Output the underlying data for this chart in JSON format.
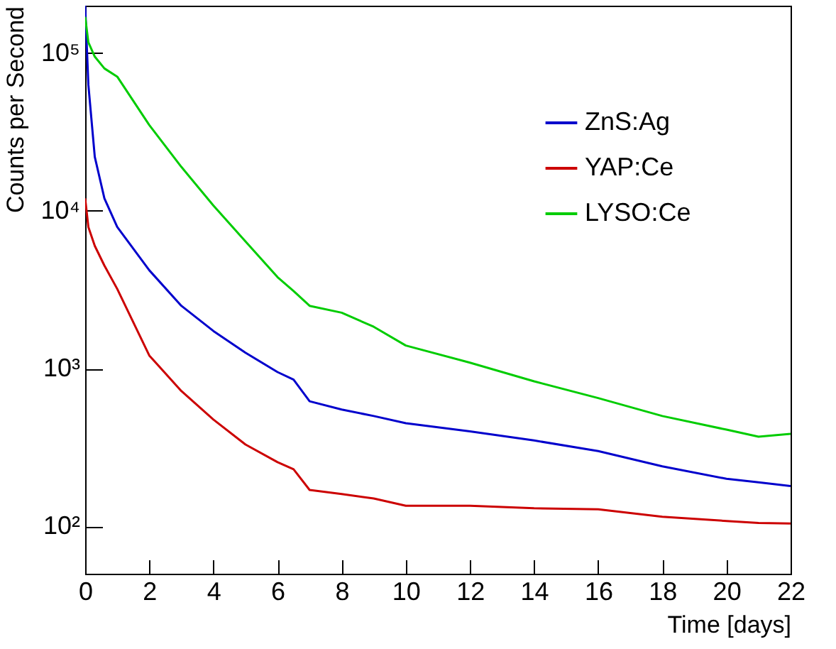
{
  "chart_data": {
    "type": "line",
    "xlabel": "Time [days]",
    "ylabel": "Counts per Second",
    "log": "y",
    "grid": false,
    "legend": "top right",
    "marker": "none",
    "line_style": "solid",
    "x": [
      0,
      0.1,
      0.3,
      0.6,
      1,
      2,
      3,
      4,
      5,
      6,
      6.5,
      7,
      8,
      9,
      10,
      12,
      14,
      16,
      18,
      20,
      21,
      22
    ],
    "series": [
      {
        "name": "ZnS:Ag",
        "color": "#0000cc",
        "values": [
          200000,
          63000,
          22000,
          12000,
          7900,
          4200,
          2500,
          1730,
          1260,
          950,
          850,
          620,
          550,
          500,
          450,
          400,
          350,
          300,
          240,
          200,
          190,
          180
        ]
      },
      {
        "name": "YAP:Ce",
        "color": "#cc0000",
        "values": [
          12000,
          7900,
          6000,
          4500,
          3200,
          1210,
          720,
          475,
          330,
          255,
          230,
          170,
          160,
          150,
          135,
          135,
          130,
          128,
          115,
          108,
          105,
          104
        ]
      },
      {
        "name": "LYSO:Ce",
        "color": "#00cc00",
        "values": [
          170000,
          117000,
          95000,
          80000,
          71000,
          35000,
          19000,
          10800,
          6400,
          3800,
          3100,
          2500,
          2260,
          1840,
          1400,
          1090,
          830,
          650,
          500,
          410,
          370,
          385
        ]
      }
    ],
    "xlim": [
      0,
      22
    ],
    "xticks": [
      0,
      2,
      4,
      6,
      8,
      10,
      12,
      14,
      16,
      18,
      20,
      22
    ],
    "ylim": [
      50,
      200000
    ],
    "yticks": [
      {
        "value": 100,
        "label": "10²"
      },
      {
        "value": 1000,
        "label": "10³"
      },
      {
        "value": 10000,
        "label": "10⁴"
      },
      {
        "value": 100000,
        "label": "10⁵"
      }
    ]
  }
}
